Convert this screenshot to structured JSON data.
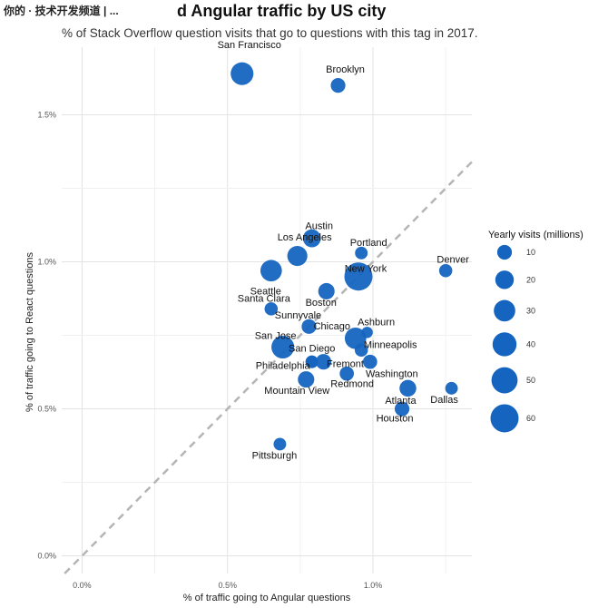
{
  "watermark": "你的 · 技术开发频道 | ...",
  "chart_data": {
    "type": "scatter",
    "title": "React and Angular traffic by US city",
    "subtitle": "% of Stack Overflow question visits that go to questions with this tag in 2017.",
    "xlabel": "% of traffic going to Angular questions",
    "ylabel": "% of traffic going to React questions",
    "xlim": [
      -0.0007,
      0.0134
    ],
    "ylim": [
      -0.0006,
      0.0173
    ],
    "x_ticks": [
      0,
      0.005,
      0.01
    ],
    "x_tick_labels": [
      "0.0%",
      "0.5%",
      "1.0%"
    ],
    "y_ticks": [
      0,
      0.005,
      0.01,
      0.015
    ],
    "y_tick_labels": [
      "0.0%",
      "0.5%",
      "1.0%",
      "1.5%"
    ],
    "grid": true,
    "reference_line": "y = x (dashed)",
    "color": "#1565c0",
    "legend": {
      "title": "Yearly visits (millions)",
      "position": "right",
      "sizes": [
        10,
        20,
        30,
        40,
        50,
        60
      ],
      "labels": [
        "10",
        "20",
        "30",
        "40",
        "50",
        "60"
      ]
    },
    "points": [
      {
        "city": "San Francisco",
        "x": 0.0055,
        "y": 0.0164,
        "visits": 35
      },
      {
        "city": "Brooklyn",
        "x": 0.0088,
        "y": 0.016,
        "visits": 10
      },
      {
        "city": "Austin",
        "x": 0.0079,
        "y": 0.0108,
        "visits": 18
      },
      {
        "city": "Portland",
        "x": 0.0096,
        "y": 0.0103,
        "visits": 6
      },
      {
        "city": "Los Angeles",
        "x": 0.0074,
        "y": 0.0102,
        "visits": 25
      },
      {
        "city": "Denver",
        "x": 0.0125,
        "y": 0.0097,
        "visits": 7
      },
      {
        "city": "New York",
        "x": 0.0095,
        "y": 0.0095,
        "visits": 60
      },
      {
        "city": "Seattle",
        "x": 0.0065,
        "y": 0.0097,
        "visits": 30
      },
      {
        "city": "Boston",
        "x": 0.0084,
        "y": 0.009,
        "visits": 14
      },
      {
        "city": "Santa Clara",
        "x": 0.0065,
        "y": 0.0084,
        "visits": 7
      },
      {
        "city": "Sunnyvale",
        "x": 0.0078,
        "y": 0.0078,
        "visits": 10
      },
      {
        "city": "Ashburn",
        "x": 0.0098,
        "y": 0.0076,
        "visits": 4
      },
      {
        "city": "Chicago",
        "x": 0.0094,
        "y": 0.0074,
        "visits": 30
      },
      {
        "city": "San Jose",
        "x": 0.0069,
        "y": 0.0071,
        "visits": 35
      },
      {
        "city": "San Diego",
        "x": 0.0079,
        "y": 0.0066,
        "visits": 6
      },
      {
        "city": "Minneapolis",
        "x": 0.0096,
        "y": 0.007,
        "visits": 7
      },
      {
        "city": "Philadelphia",
        "x": 0.0079,
        "y": 0.0066,
        "visits": 6
      },
      {
        "city": "Fremont",
        "x": 0.0083,
        "y": 0.0066,
        "visits": 12
      },
      {
        "city": "Washington",
        "x": 0.0099,
        "y": 0.0066,
        "visits": 9
      },
      {
        "city": "Redmond",
        "x": 0.0091,
        "y": 0.0062,
        "visits": 9
      },
      {
        "city": "Mountain View",
        "x": 0.0077,
        "y": 0.006,
        "visits": 14
      },
      {
        "city": "Atlanta",
        "x": 0.0112,
        "y": 0.0057,
        "visits": 15
      },
      {
        "city": "Dallas",
        "x": 0.0127,
        "y": 0.0057,
        "visits": 6
      },
      {
        "city": "Houston",
        "x": 0.011,
        "y": 0.005,
        "visits": 10
      },
      {
        "city": "Pittsburgh",
        "x": 0.0068,
        "y": 0.0038,
        "visits": 6
      }
    ]
  }
}
